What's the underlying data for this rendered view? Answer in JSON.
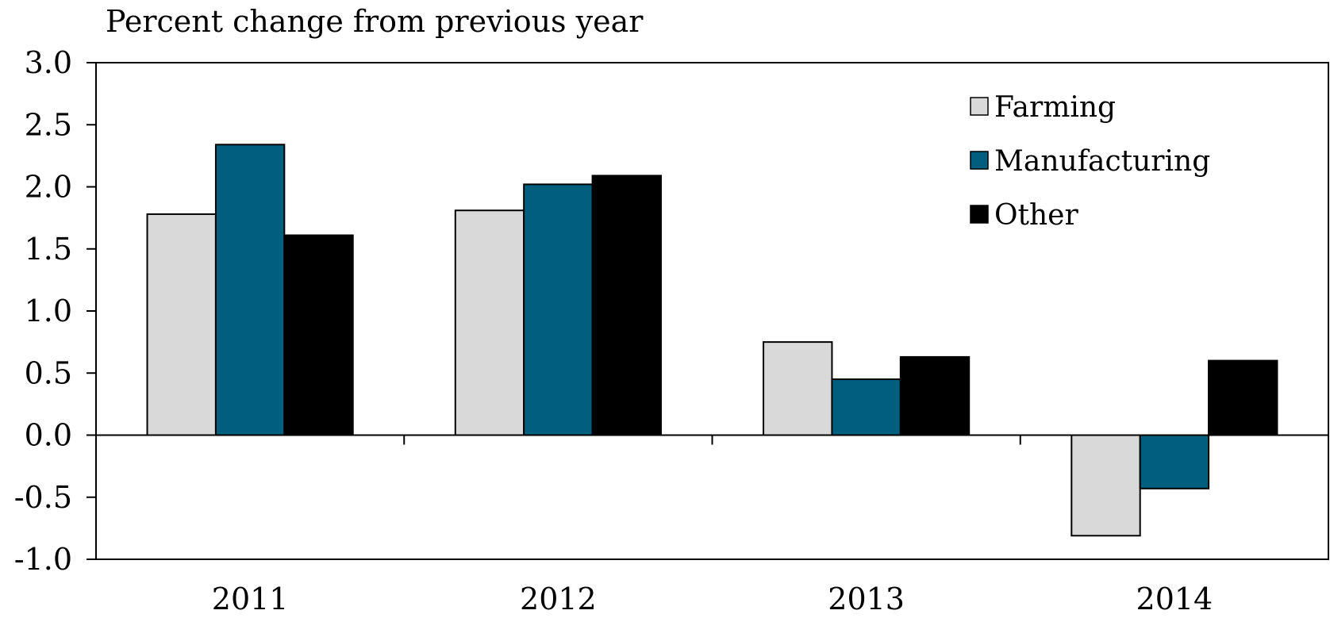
{
  "chart_data": {
    "type": "bar",
    "title": "Percent change from previous year",
    "xlabel": "",
    "ylabel": "",
    "categories": [
      "2011",
      "2012",
      "2013",
      "2014"
    ],
    "series": [
      {
        "name": "Farming",
        "values": [
          1.78,
          1.81,
          0.75,
          -0.81
        ],
        "color": "#d9d9d9"
      },
      {
        "name": "Manufacturing",
        "values": [
          2.34,
          2.02,
          0.45,
          -0.43
        ],
        "color": "#005f7f"
      },
      {
        "name": "Other",
        "values": [
          1.61,
          2.09,
          0.63,
          0.6
        ],
        "color": "#000000"
      }
    ],
    "ylim": [
      -1.0,
      3.0
    ],
    "yticks": [
      "-1.0",
      "-0.5",
      "0.0",
      "0.5",
      "1.0",
      "1.5",
      "2.0",
      "2.5",
      "3.0"
    ],
    "grid": false,
    "legend_position": "top-right"
  }
}
